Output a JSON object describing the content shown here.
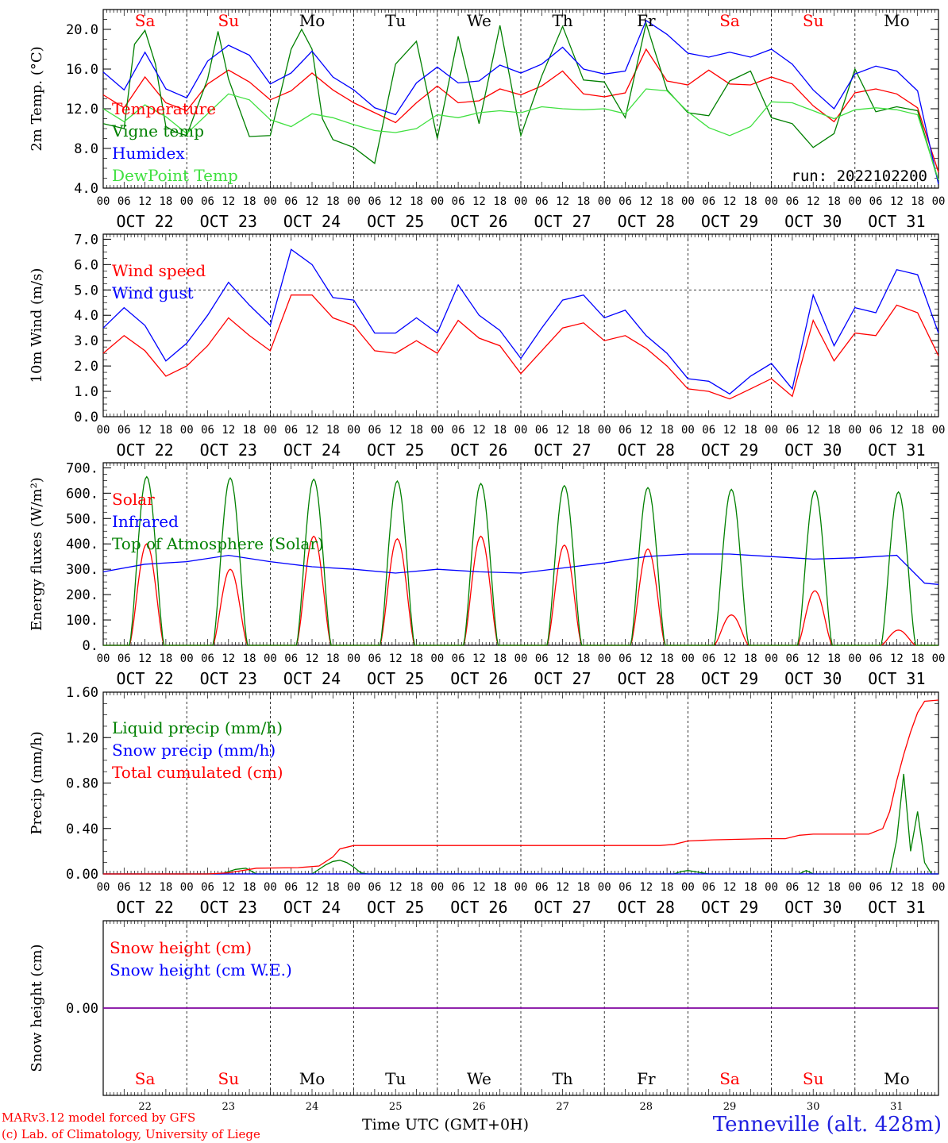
{
  "meta": {
    "run_label": "run: 2022102200",
    "model_line": "MARv3.12 model forced by GFS",
    "credit_line": "(c) Lab. of Climatology, University of Liege",
    "station": "Tenneville (alt. 428m)",
    "time_axis_label": "Time UTC (GMT+0H)"
  },
  "days": {
    "weekday": [
      "Sa",
      "Su",
      "Mo",
      "Tu",
      "We",
      "Th",
      "Fr",
      "Sa",
      "Su",
      "Mo"
    ],
    "weekend": [
      true,
      true,
      false,
      false,
      false,
      false,
      false,
      true,
      true,
      false
    ],
    "date_labels": [
      "OCT 22",
      "OCT 23",
      "OCT 24",
      "OCT 25",
      "OCT 26",
      "OCT 27",
      "OCT 28",
      "OCT 29",
      "OCT 30",
      "OCT 31"
    ],
    "day_numbers": [
      "22",
      "23",
      "24",
      "25",
      "26",
      "27",
      "28",
      "29",
      "30",
      "31"
    ],
    "hour_labels": [
      "00",
      "06",
      "12",
      "18"
    ]
  },
  "colors": {
    "red": "#ff0000",
    "dark_green": "#008000",
    "blue": "#0000ff",
    "light_green": "#40e040",
    "purple": "#8000a0",
    "weekend_text": "#ff0000",
    "weekday_text": "#000000"
  },
  "chart_data": [
    {
      "type": "line",
      "ylabel": "2m Temp. (°C)",
      "ylim": [
        4,
        22
      ],
      "yticks": [
        "4.0",
        "8.0",
        "12.0",
        "16.0",
        "20.0"
      ],
      "ytick_values": [
        4,
        8,
        12,
        16,
        20
      ],
      "x_unit": "hours since Oct 22 00 UTC",
      "series": [
        {
          "name": "Temperature",
          "color": "#ff0000",
          "x": [
            0,
            6,
            12,
            18,
            24,
            30,
            36,
            42,
            48,
            54,
            60,
            66,
            72,
            78,
            84,
            90,
            96,
            102,
            108,
            114,
            120,
            126,
            132,
            138,
            144,
            150,
            156,
            162,
            168,
            174,
            180,
            186,
            192,
            198,
            204,
            210,
            216,
            222,
            228,
            234,
            240
          ],
          "y": [
            13.4,
            12.1,
            15.2,
            12.6,
            11.8,
            14.5,
            15.9,
            14.7,
            12.9,
            13.8,
            15.6,
            13.9,
            12.6,
            11.6,
            10.6,
            12.6,
            14.3,
            12.6,
            12.8,
            14.0,
            13.4,
            14.3,
            15.8,
            13.5,
            13.2,
            13.6,
            18.0,
            14.8,
            14.4,
            15.9,
            14.5,
            14.4,
            15.2,
            14.5,
            12.3,
            10.7,
            13.6,
            14.0,
            13.5,
            12.1,
            5.6
          ]
        },
        {
          "name": "Vigne temp",
          "color": "#008000",
          "x": [
            0,
            6,
            9,
            12,
            15,
            18,
            21,
            24,
            30,
            33,
            36,
            42,
            48,
            54,
            57,
            60,
            63,
            66,
            72,
            78,
            84,
            90,
            96,
            102,
            108,
            114,
            120,
            126,
            132,
            138,
            144,
            150,
            156,
            162,
            168,
            174,
            180,
            186,
            192,
            198,
            204,
            210,
            216,
            222,
            228,
            234,
            240
          ],
          "y": [
            10.5,
            10.0,
            18.5,
            19.9,
            16.5,
            10.2,
            9.6,
            9.3,
            15.0,
            19.8,
            15.0,
            9.2,
            9.3,
            18.0,
            20.0,
            18.0,
            11.0,
            8.9,
            8.1,
            6.5,
            16.5,
            18.8,
            9.0,
            19.3,
            10.5,
            20.4,
            9.3,
            15.3,
            20.3,
            14.9,
            14.7,
            11.1,
            20.6,
            13.9,
            11.6,
            11.3,
            14.8,
            15.8,
            11.1,
            10.5,
            8.1,
            9.5,
            16.0,
            11.7,
            12.2,
            11.8,
            4.6
          ]
        },
        {
          "name": "Humidex",
          "color": "#0000ff",
          "x": [
            0,
            6,
            12,
            18,
            24,
            30,
            36,
            42,
            48,
            54,
            60,
            66,
            72,
            78,
            84,
            90,
            96,
            102,
            108,
            114,
            120,
            126,
            132,
            138,
            144,
            150,
            156,
            162,
            168,
            174,
            180,
            186,
            192,
            198,
            204,
            210,
            216,
            222,
            228,
            234,
            240
          ],
          "y": [
            15.7,
            13.9,
            17.7,
            14.0,
            13.1,
            16.8,
            18.4,
            17.4,
            14.5,
            15.6,
            17.8,
            15.2,
            13.9,
            12.1,
            11.4,
            14.6,
            16.2,
            14.6,
            14.8,
            16.4,
            15.6,
            16.5,
            18.2,
            16.0,
            15.5,
            15.8,
            20.9,
            19.5,
            17.6,
            17.2,
            17.7,
            17.2,
            18.0,
            16.5,
            13.9,
            12.0,
            15.5,
            16.3,
            15.8,
            13.8,
            4.4
          ]
        },
        {
          "name": "DewPoint Temp",
          "color": "#40e040",
          "x": [
            0,
            6,
            12,
            18,
            24,
            30,
            36,
            42,
            48,
            54,
            60,
            66,
            72,
            78,
            84,
            90,
            96,
            102,
            108,
            114,
            120,
            126,
            132,
            138,
            144,
            150,
            156,
            162,
            168,
            174,
            180,
            186,
            192,
            198,
            204,
            210,
            216,
            222,
            228,
            234,
            240
          ],
          "y": [
            12.0,
            10.7,
            12.4,
            11.2,
            9.5,
            11.5,
            13.5,
            12.9,
            10.9,
            10.2,
            11.5,
            11.1,
            10.4,
            9.8,
            9.6,
            10.0,
            11.4,
            11.1,
            11.6,
            11.8,
            11.6,
            12.2,
            12.0,
            11.9,
            12.0,
            11.5,
            14.0,
            13.8,
            11.7,
            10.1,
            9.3,
            10.2,
            12.7,
            12.6,
            11.8,
            11.0,
            11.9,
            12.1,
            11.9,
            11.4,
            4.8
          ]
        }
      ]
    },
    {
      "type": "line",
      "ylabel": "10m Wind (m/s)",
      "ylim": [
        0,
        7.2
      ],
      "yticks": [
        "0.0",
        "1.0",
        "2.0",
        "3.0",
        "4.0",
        "5.0",
        "6.0",
        "7.0"
      ],
      "ytick_values": [
        0,
        1,
        2,
        3,
        4,
        5,
        6,
        7
      ],
      "reference_line": 5.0,
      "series": [
        {
          "name": "Wind speed",
          "color": "#ff0000",
          "x": [
            0,
            6,
            12,
            18,
            24,
            30,
            36,
            42,
            48,
            54,
            60,
            66,
            72,
            78,
            84,
            90,
            96,
            102,
            108,
            114,
            120,
            126,
            132,
            138,
            144,
            150,
            156,
            162,
            168,
            174,
            180,
            186,
            192,
            198,
            204,
            210,
            216,
            222,
            228,
            234,
            240
          ],
          "y": [
            2.5,
            3.2,
            2.6,
            1.6,
            2.0,
            2.8,
            3.9,
            3.2,
            2.6,
            4.8,
            4.8,
            3.9,
            3.6,
            2.6,
            2.5,
            3.0,
            2.5,
            3.8,
            3.1,
            2.8,
            1.7,
            2.6,
            3.5,
            3.7,
            3.0,
            3.2,
            2.7,
            2.0,
            1.1,
            1.0,
            0.7,
            1.1,
            1.5,
            0.8,
            3.8,
            2.2,
            3.3,
            3.2,
            4.4,
            4.1,
            2.4
          ]
        },
        {
          "name": "Wind gust",
          "color": "#0000ff",
          "x": [
            0,
            6,
            12,
            18,
            24,
            30,
            36,
            42,
            48,
            54,
            60,
            66,
            72,
            78,
            84,
            90,
            96,
            102,
            108,
            114,
            120,
            126,
            132,
            138,
            144,
            150,
            156,
            162,
            168,
            174,
            180,
            186,
            192,
            198,
            204,
            210,
            216,
            222,
            228,
            234,
            240
          ],
          "y": [
            3.5,
            4.3,
            3.6,
            2.2,
            2.9,
            4.0,
            5.3,
            4.4,
            3.6,
            6.6,
            6.0,
            4.7,
            4.6,
            3.3,
            3.3,
            3.9,
            3.3,
            5.2,
            4.0,
            3.4,
            2.3,
            3.5,
            4.6,
            4.8,
            3.9,
            4.2,
            3.2,
            2.5,
            1.5,
            1.4,
            0.9,
            1.6,
            2.1,
            1.1,
            4.8,
            2.8,
            4.3,
            4.1,
            5.8,
            5.6,
            3.3
          ]
        }
      ]
    },
    {
      "type": "line",
      "ylabel": "Energy fluxes (W/m²)",
      "ylim": [
        0,
        720
      ],
      "yticks": [
        "0.",
        "100.",
        "200.",
        "300.",
        "400.",
        "500.",
        "600.",
        "700."
      ],
      "ytick_values": [
        0,
        100,
        200,
        300,
        400,
        500,
        600,
        700
      ],
      "series": [
        {
          "name": "Solar",
          "color": "#ff0000",
          "daily_peak": [
            400,
            300,
            430,
            420,
            430,
            395,
            380,
            120,
            215,
            60
          ],
          "sunrise_hour": 7.5,
          "sunset_hour": 17.5
        },
        {
          "name": "Infrared",
          "color": "#0000ff",
          "x": [
            0,
            12,
            24,
            36,
            48,
            60,
            72,
            84,
            96,
            108,
            120,
            132,
            144,
            156,
            168,
            180,
            192,
            204,
            216,
            228,
            236,
            240
          ],
          "y": [
            290,
            320,
            330,
            355,
            330,
            310,
            300,
            285,
            300,
            290,
            285,
            305,
            325,
            350,
            360,
            360,
            350,
            340,
            345,
            355,
            245,
            240
          ]
        },
        {
          "name": "Top of Atmosphere (Solar)",
          "color": "#008000",
          "daily_peak": [
            665,
            660,
            655,
            648,
            638,
            630,
            622,
            615,
            610,
            605
          ],
          "sunrise_hour": 7.5,
          "sunset_hour": 17.5
        }
      ]
    },
    {
      "type": "line",
      "ylabel": "Precip (mm/h)",
      "ylim": [
        0,
        1.6
      ],
      "yticks": [
        "0.00",
        "0.40",
        "0.80",
        "1.20",
        "1.60"
      ],
      "ytick_values": [
        0,
        0.4,
        0.8,
        1.2,
        1.6
      ],
      "series": [
        {
          "name": "Liquid precip (mm/h)",
          "color": "#008000",
          "x": [
            0,
            34,
            38,
            41,
            44,
            60,
            64,
            66,
            68,
            70,
            72,
            74,
            76,
            164,
            166,
            168,
            170,
            172,
            174,
            200,
            202,
            204,
            226,
            228,
            230,
            232,
            234,
            236,
            238,
            240
          ],
          "y": [
            0,
            0,
            0.04,
            0.05,
            0,
            0,
            0.08,
            0.11,
            0.12,
            0.1,
            0.06,
            0.01,
            0,
            0,
            0.02,
            0.03,
            0.02,
            0.01,
            0,
            0,
            0.03,
            0,
            0,
            0.3,
            0.88,
            0.2,
            0.55,
            0.1,
            0,
            0
          ]
        },
        {
          "name": "Snow precip (mm/h)",
          "color": "#0000ff",
          "x": [
            0,
            240
          ],
          "y": [
            0,
            0
          ]
        },
        {
          "name": "Total cumulated (cm)",
          "color": "#ff0000",
          "x": [
            0,
            30,
            36,
            42,
            44,
            56,
            62,
            66,
            68,
            72,
            160,
            164,
            168,
            175,
            190,
            196,
            200,
            204,
            220,
            224,
            226,
            228,
            230,
            232,
            234,
            236,
            240
          ],
          "y": [
            0,
            0,
            0.01,
            0.04,
            0.05,
            0.055,
            0.07,
            0.15,
            0.22,
            0.25,
            0.25,
            0.26,
            0.29,
            0.3,
            0.31,
            0.31,
            0.34,
            0.35,
            0.35,
            0.4,
            0.55,
            0.82,
            1.05,
            1.25,
            1.42,
            1.52,
            1.53
          ]
        }
      ]
    },
    {
      "type": "line",
      "ylabel": "Snow height (cm)",
      "ylim": [
        -1,
        1
      ],
      "yticks": [
        "0.00"
      ],
      "ytick_values": [
        0
      ],
      "series": [
        {
          "name": "Snow height (cm)",
          "color": "#ff0000",
          "x": [
            0,
            240
          ],
          "y": [
            0,
            0
          ]
        },
        {
          "name": "Snow height (cm W.E.)",
          "color": "#0000ff",
          "x": [
            0,
            240
          ],
          "y": [
            0,
            0
          ]
        }
      ]
    }
  ]
}
